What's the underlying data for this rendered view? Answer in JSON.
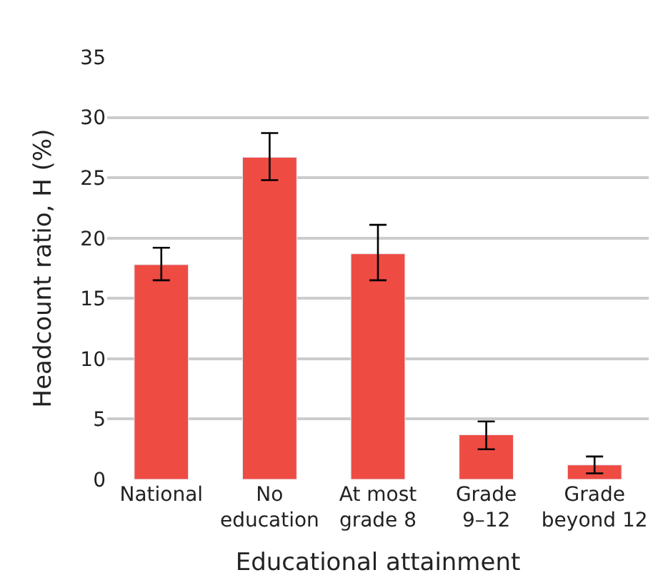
{
  "chart_data": {
    "type": "bar",
    "xlabel": "Educational attainment",
    "ylabel": "Headcount ratio, H (%)",
    "categories": [
      "National",
      "No\neducation",
      "At most\ngrade 8",
      "Grade\n9–12",
      "Grade\nbeyond 12"
    ],
    "values": [
      17.8,
      26.7,
      18.7,
      3.7,
      1.2
    ],
    "errors": [
      [
        16.5,
        19.2
      ],
      [
        24.8,
        28.7
      ],
      [
        16.5,
        21.1
      ],
      [
        2.5,
        4.8
      ],
      [
        0.5,
        1.9
      ]
    ],
    "color": "#ee4b43",
    "ylim": [
      0,
      35
    ],
    "yticks": [
      0,
      5,
      10,
      15,
      20,
      25,
      30,
      35
    ],
    "grid": "y",
    "legend": false
  }
}
